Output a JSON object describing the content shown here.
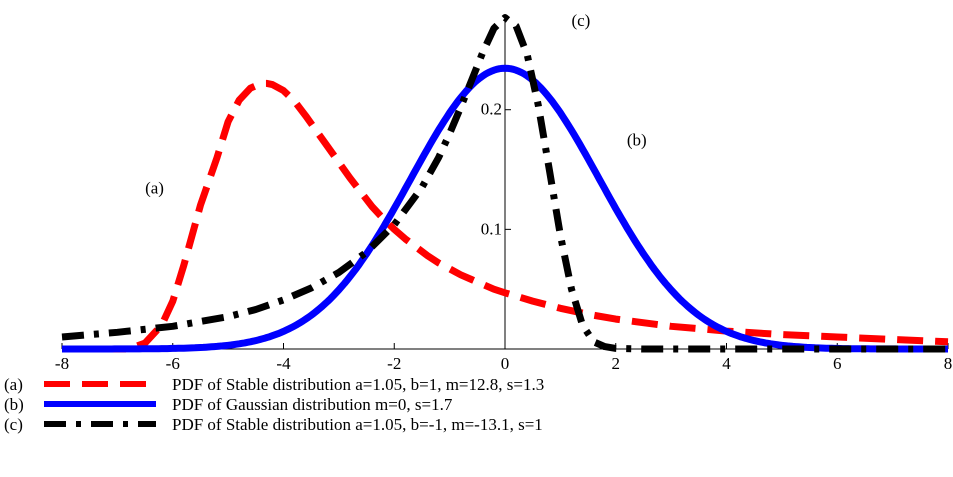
{
  "chart_data": {
    "type": "line",
    "title": "",
    "xlabel": "",
    "ylabel": "",
    "xlim": [
      -8,
      8
    ],
    "ylim": [
      0,
      0.28
    ],
    "grid": false,
    "legend_position": "bottom-left",
    "x_ticks": [
      -8,
      -6,
      -4,
      -2,
      0,
      2,
      4,
      6,
      8
    ],
    "x_tick_labels": [
      "-8",
      "-6",
      "-4",
      "-2",
      "0",
      "2",
      "4",
      "6",
      "8"
    ],
    "y_ticks": [
      0.1,
      0.2
    ],
    "y_tick_labels": [
      "0.1",
      "0.2"
    ],
    "series": [
      {
        "key": "a",
        "name": "PDF of Stable distribution a=1.05, b=1, m=12.8, s=1.3",
        "label": "(a)",
        "color": "#ff0000",
        "style": "dashed",
        "x": [
          -8,
          -6.8,
          -6.5,
          -6.2,
          -6.0,
          -5.8,
          -5.5,
          -5.2,
          -5.0,
          -4.8,
          -4.6,
          -4.4,
          -4.3,
          -4.2,
          -4.0,
          -3.8,
          -3.6,
          -3.4,
          -3.2,
          -3.0,
          -2.8,
          -2.6,
          -2.4,
          -2.2,
          -2.0,
          -1.8,
          -1.6,
          -1.4,
          -1.2,
          -1.0,
          -0.8,
          -0.6,
          -0.4,
          -0.2,
          0.0,
          0.5,
          1.0,
          1.5,
          2.0,
          3.0,
          4.0,
          5.0,
          6.0,
          7.0,
          8.0
        ],
        "y": [
          0,
          0,
          0.005,
          0.02,
          0.04,
          0.07,
          0.12,
          0.16,
          0.19,
          0.208,
          0.218,
          0.222,
          0.222,
          0.221,
          0.216,
          0.207,
          0.195,
          0.182,
          0.169,
          0.156,
          0.143,
          0.131,
          0.119,
          0.109,
          0.1,
          0.092,
          0.085,
          0.078,
          0.072,
          0.067,
          0.062,
          0.058,
          0.054,
          0.05,
          0.047,
          0.04,
          0.034,
          0.029,
          0.025,
          0.019,
          0.015,
          0.012,
          0.01,
          0.008,
          0.006
        ]
      },
      {
        "key": "b",
        "name": "PDF of Gaussian distribution m=0, s=1.7",
        "label": "(b)",
        "color": "#0000ff",
        "style": "solid",
        "mean": 0,
        "sd": 1.7
      },
      {
        "key": "c",
        "name": "PDF of Stable distribution a=1.05, b=-1, m=-13.1, s=1",
        "label": "(c)",
        "color": "#000000",
        "style": "dash-dot",
        "x": [
          -8,
          -7,
          -6,
          -5,
          -4.5,
          -4,
          -3.5,
          -3,
          -2.5,
          -2,
          -1.5,
          -1.2,
          -1.0,
          -0.8,
          -0.6,
          -0.4,
          -0.2,
          0.0,
          0.2,
          0.4,
          0.6,
          0.8,
          1.0,
          1.2,
          1.4,
          1.6,
          1.8,
          2.0,
          2.5,
          3.0,
          4,
          5,
          6,
          7,
          8
        ],
        "y": [
          0.01,
          0.014,
          0.019,
          0.027,
          0.033,
          0.041,
          0.051,
          0.064,
          0.081,
          0.104,
          0.135,
          0.16,
          0.18,
          0.202,
          0.225,
          0.248,
          0.268,
          0.277,
          0.27,
          0.246,
          0.204,
          0.15,
          0.095,
          0.05,
          0.02,
          0.006,
          0.002,
          0.0005,
          0,
          0,
          0,
          0,
          0,
          0,
          0
        ]
      }
    ],
    "annotations": [
      {
        "text": "(a)",
        "x": -6.5,
        "y": 0.13
      },
      {
        "text": "(b)",
        "x": 2.2,
        "y": 0.17
      },
      {
        "text": "(c)",
        "x": 1.2,
        "y": 0.27
      }
    ]
  },
  "legend": [
    {
      "label": "(a)",
      "text": "PDF of Stable distribution a=1.05, b=1, m=12.8, s=1.3"
    },
    {
      "label": "(b)",
      "text": "PDF of Gaussian distribution m=0, s=1.7"
    },
    {
      "label": "(c)",
      "text": "PDF of Stable distribution a=1.05, b=-1, m=-13.1, s=1"
    }
  ]
}
